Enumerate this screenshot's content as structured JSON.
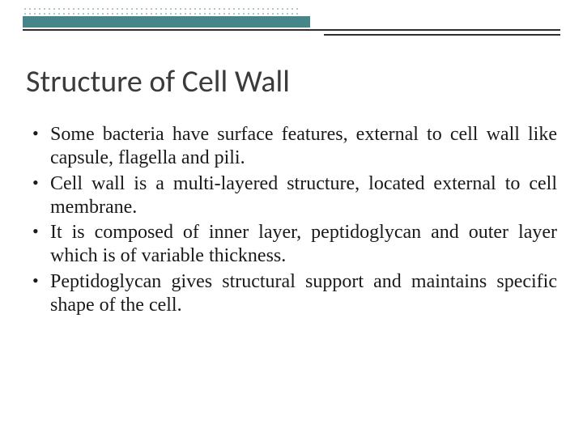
{
  "slide": {
    "title": "Structure of Cell Wall",
    "bullets": [
      "Some bacteria have surface features, external to cell wall like capsule, flagella and pili.",
      "Cell wall is a multi-layered structure, located external to cell membrane.",
      "It is composed of inner layer, peptidoglycan and outer layer which is of variable thickness.",
      "Peptidoglycan gives structural support and maintains specific shape of the cell."
    ]
  },
  "theme": {
    "accent_color": "#46858a",
    "dot_color": "#6aa0a4",
    "rule_color": "#2e2e2e",
    "background_color": "#ffffff",
    "title_color": "#3b3b3b",
    "body_color": "#1a1a1a",
    "title_fontsize": 38,
    "body_fontsize": 24
  }
}
